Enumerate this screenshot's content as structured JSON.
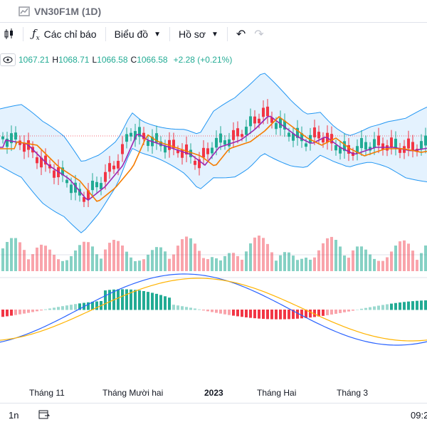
{
  "header": {
    "symbol": "VN30F1M (1D)"
  },
  "toolbar": {
    "indicators_label": "Các chỉ báo",
    "chart_type_label": "Biểu đồ",
    "profile_label": "Hồ sơ"
  },
  "legend": {
    "open_value": "1067.21",
    "high_label": "H",
    "high_value": "1068.71",
    "low_label": "L",
    "low_value": "1066.58",
    "close_label": "C",
    "close_value": "1066.58",
    "change": "+2.28 (+0.21%)"
  },
  "time_axis": {
    "labels": [
      "Tháng 11",
      "Tháng Mười hai",
      "2023",
      "Tháng Hai",
      "Tháng 3"
    ]
  },
  "bottom": {
    "range_label": "1n",
    "time": "09:2"
  },
  "colors": {
    "up": "#22ab94",
    "down": "#f23645",
    "bb": "#2196f3",
    "ma_fast": "#9c27b0",
    "ma_slow": "#f57c00",
    "signal": "#ffb300",
    "macd": "#2962ff"
  }
}
